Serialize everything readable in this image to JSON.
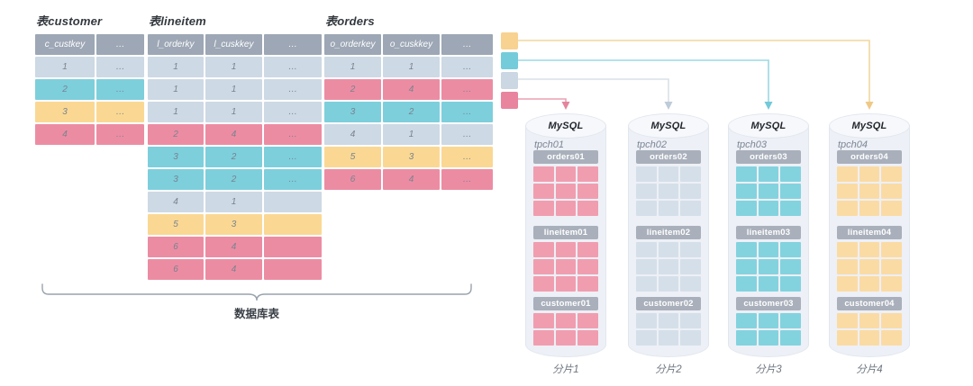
{
  "bracket_label": "数据库表",
  "palette": {
    "pink": {
      "row": "#EC8CA3",
      "grid": "#F19DB0",
      "line": "#E9A0B2",
      "arrow": "#E4849D",
      "swatch": "#E9849E"
    },
    "cyan": {
      "row": "#7DCFDC",
      "grid": "#83D3DF",
      "line": "#9BD8E3",
      "arrow": "#72C9D9",
      "swatch": "#74CCDA"
    },
    "light": {
      "row": "#CDD9E4",
      "grid": "#D5DFE9",
      "line": "#D8E0E8",
      "arrow": "#BECBD8",
      "swatch": "#CBD7E2"
    },
    "yellow": {
      "row": "#FAD893",
      "grid": "#FBDBA4",
      "line": "#F2D79E",
      "arrow": "#EFC987",
      "swatch": "#F8D291"
    }
  },
  "ui": {
    "header_bg": "#9DA7B5",
    "bar_bg": "#A9B0BB",
    "header_text": "#FFFFFF",
    "cell_text": "#79838F",
    "cylinder_body": "#EDF0F6",
    "cylinder_top": "#F6F8FB",
    "cylinder_border": "#E2E7EF",
    "brace_color": "#99A2AC"
  },
  "tables": [
    {
      "key": "customer",
      "title": "表customer",
      "columns": [
        "c_custkey",
        "…"
      ],
      "rows": [
        {
          "cells": [
            "1",
            "…"
          ],
          "color": "light"
        },
        {
          "cells": [
            "2",
            "…"
          ],
          "color": "cyan"
        },
        {
          "cells": [
            "3",
            "…"
          ],
          "color": "yellow"
        },
        {
          "cells": [
            "4",
            "…"
          ],
          "color": "pink"
        }
      ]
    },
    {
      "key": "lineitem",
      "title": "表lineitem",
      "columns": [
        "l_orderky",
        "l_cuskkey",
        "…"
      ],
      "rows": [
        {
          "cells": [
            "1",
            "1",
            "…"
          ],
          "color": "light"
        },
        {
          "cells": [
            "1",
            "1",
            "…"
          ],
          "color": "light"
        },
        {
          "cells": [
            "1",
            "1",
            "…"
          ],
          "color": "light"
        },
        {
          "cells": [
            "2",
            "4",
            "…"
          ],
          "color": "pink"
        },
        {
          "cells": [
            "3",
            "2",
            "…"
          ],
          "color": "cyan"
        },
        {
          "cells": [
            "3",
            "2",
            "…"
          ],
          "color": "cyan"
        },
        {
          "cells": [
            "4",
            "1",
            ""
          ],
          "color": "light"
        },
        {
          "cells": [
            "5",
            "3",
            ""
          ],
          "color": "yellow"
        },
        {
          "cells": [
            "6",
            "4",
            ""
          ],
          "color": "pink"
        },
        {
          "cells": [
            "6",
            "4",
            ""
          ],
          "color": "pink"
        }
      ]
    },
    {
      "key": "orders",
      "title": "表orders",
      "columns": [
        "o_orderkey",
        "o_cuskkey",
        "…"
      ],
      "rows": [
        {
          "cells": [
            "1",
            "1",
            "…"
          ],
          "color": "light"
        },
        {
          "cells": [
            "2",
            "4",
            "…"
          ],
          "color": "pink"
        },
        {
          "cells": [
            "3",
            "2",
            "…"
          ],
          "color": "cyan"
        },
        {
          "cells": [
            "4",
            "1",
            "…"
          ],
          "color": "light"
        },
        {
          "cells": [
            "5",
            "3",
            "…"
          ],
          "color": "yellow"
        },
        {
          "cells": [
            "6",
            "4",
            "…"
          ],
          "color": "pink"
        }
      ]
    }
  ],
  "legend": [
    {
      "color": "yellow",
      "target_shard": 4
    },
    {
      "color": "cyan",
      "target_shard": 3
    },
    {
      "color": "light",
      "target_shard": 2
    },
    {
      "color": "pink",
      "target_shard": 1
    }
  ],
  "shards": [
    {
      "engine": "MySQL",
      "db": "tpch01",
      "label": "分片1",
      "color": "pink",
      "tables": [
        {
          "name": "orders01",
          "rows": 3
        },
        {
          "name": "lineitem01",
          "rows": 3
        },
        {
          "name": "customer01",
          "rows": 2
        }
      ]
    },
    {
      "engine": "MySQL",
      "db": "tpch02",
      "label": "分片2",
      "color": "light",
      "tables": [
        {
          "name": "orders02",
          "rows": 3
        },
        {
          "name": "lineitem02",
          "rows": 3
        },
        {
          "name": "customer02",
          "rows": 2
        }
      ]
    },
    {
      "engine": "MySQL",
      "db": "tpch03",
      "label": "分片3",
      "color": "cyan",
      "tables": [
        {
          "name": "orders03",
          "rows": 3
        },
        {
          "name": "lineitem03",
          "rows": 3
        },
        {
          "name": "customer03",
          "rows": 2
        }
      ]
    },
    {
      "engine": "MySQL",
      "db": "tpch04",
      "label": "分片4",
      "color": "yellow",
      "tables": [
        {
          "name": "orders04",
          "rows": 3
        },
        {
          "name": "lineitem04",
          "rows": 3
        },
        {
          "name": "customer04",
          "rows": 2
        }
      ]
    }
  ]
}
